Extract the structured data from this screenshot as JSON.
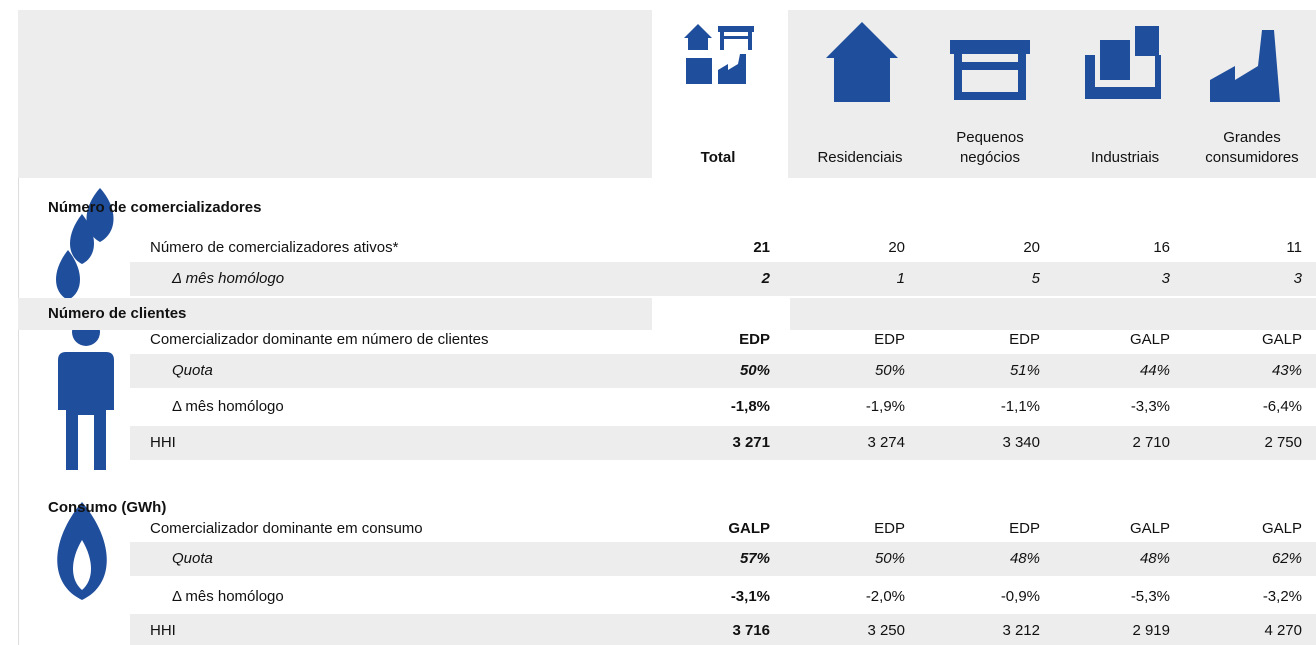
{
  "header": {
    "columns": [
      "Total",
      "Residenciais",
      "Pequenos negócios",
      "Industriais",
      "Grandes consumidores"
    ]
  },
  "sections": [
    {
      "title": "Número de comercializadores",
      "rows": [
        {
          "label": "Número de comercializadores ativos*",
          "values": [
            "21",
            "20",
            "20",
            "16",
            "11"
          ]
        },
        {
          "label": "Δ mês homólogo",
          "values": [
            "2",
            "1",
            "5",
            "3",
            "3"
          ]
        }
      ]
    },
    {
      "title": "Número de clientes",
      "rows": [
        {
          "label": "Comercializador dominante em número de clientes",
          "values": [
            "EDP",
            "EDP",
            "EDP",
            "GALP",
            "GALP"
          ]
        },
        {
          "label": "Quota",
          "values": [
            "50%",
            "50%",
            "51%",
            "44%",
            "43%"
          ]
        },
        {
          "label": "Δ mês homólogo",
          "values": [
            "-1,8%",
            "-1,9%",
            "-1,1%",
            "-3,3%",
            "-6,4%"
          ]
        },
        {
          "label": "HHI",
          "values": [
            "3 271",
            "3 274",
            "3 340",
            "2 710",
            "2 750"
          ]
        }
      ]
    },
    {
      "title": "Consumo (GWh)",
      "rows": [
        {
          "label": "Comercializador dominante em consumo",
          "values": [
            "GALP",
            "EDP",
            "EDP",
            "GALP",
            "GALP"
          ]
        },
        {
          "label": "Quota",
          "values": [
            "57%",
            "50%",
            "48%",
            "48%",
            "62%"
          ]
        },
        {
          "label": "Δ mês homólogo",
          "values": [
            "-3,1%",
            "-2,0%",
            "-0,9%",
            "-5,3%",
            "-3,2%"
          ]
        },
        {
          "label": "HHI",
          "values": [
            "3 716",
            "3 250",
            "3 212",
            "2 919",
            "4 270"
          ]
        }
      ]
    }
  ]
}
